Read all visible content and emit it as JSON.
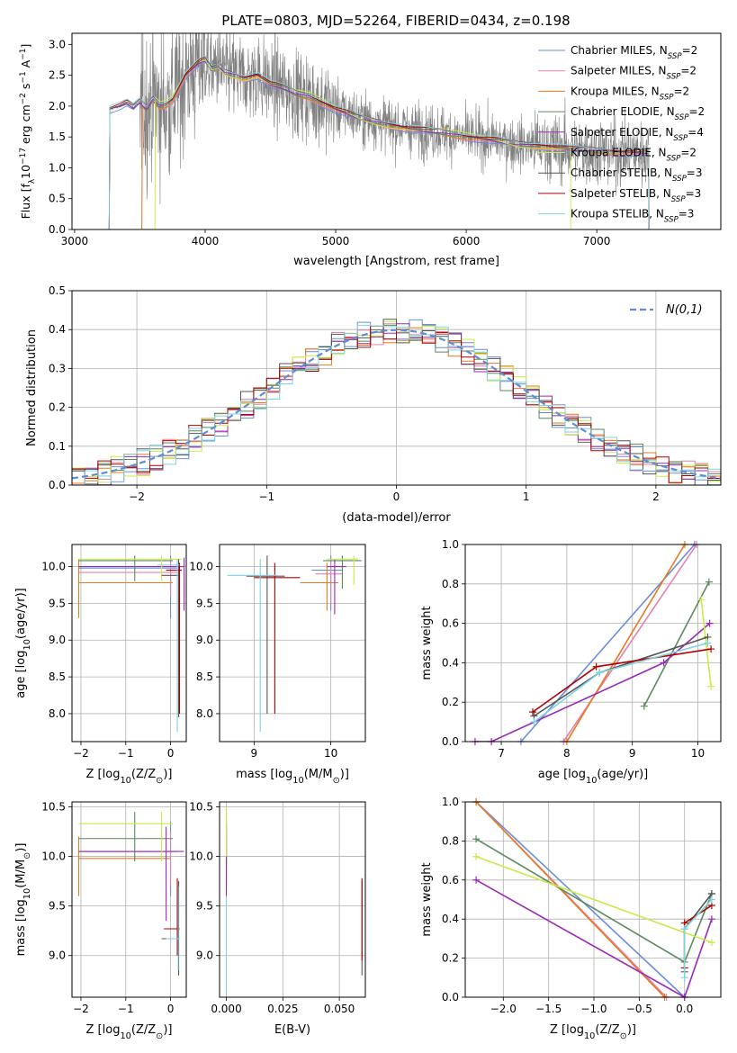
{
  "figure": {
    "title": "PLATE=0803, MJD=52264, FIBERID=0434, z=0.198"
  },
  "models": [
    {
      "name": "Chabrier MILES, N$_{SSP}$=2",
      "label_main": "Chabrier MILES, N",
      "label_sub": "SSP",
      "label_tail": "=2",
      "color": "#6a8ed8"
    },
    {
      "name": "Salpeter MILES, N$_{SSP}$=2",
      "label_main": "Salpeter MILES, N",
      "label_sub": "SSP",
      "label_tail": "=2",
      "color": "#e681b0"
    },
    {
      "name": "Kroupa MILES, N$_{SSP}$=2",
      "label_main": "Kroupa MILES, N",
      "label_sub": "SSP",
      "label_tail": "=2",
      "color": "#e57a1e"
    },
    {
      "name": "Chabrier ELODIE, N$_{SSP}$=2",
      "label_main": "Chabrier ELODIE, N",
      "label_sub": "SSP",
      "label_tail": "=2",
      "color": "#5a8a5e"
    },
    {
      "name": "Salpeter ELODIE, N$_{SSP}$=4",
      "label_main": "Salpeter ELODIE, N",
      "label_sub": "SSP",
      "label_tail": "=4",
      "color": "#9b2ab5"
    },
    {
      "name": "Kroupa ELODIE, N$_{SSP}$=2",
      "label_main": "Kroupa ELODIE, N",
      "label_sub": "SSP",
      "label_tail": "=2",
      "color": "#c9ea4a"
    },
    {
      "name": "Chabrier STELIB, N$_{SSP}$=3",
      "label_main": "Chabrier STELIB, N",
      "label_sub": "SSP",
      "label_tail": "=3",
      "color": "#555555"
    },
    {
      "name": "Salpeter STELIB, N$_{SSP}$=3",
      "label_main": "Salpeter STELIB, N",
      "label_sub": "SSP",
      "label_tail": "=3",
      "color": "#b00000"
    },
    {
      "name": "Kroupa STELIB, N$_{SSP}$=3",
      "label_main": "Kroupa STELIB, N",
      "label_sub": "SSP",
      "label_tail": "=3",
      "color": "#7fd3de"
    }
  ],
  "chart_data": [
    {
      "id": "spectrum",
      "type": "line",
      "xlabel": "wavelength [Angstrom, rest frame]",
      "ylabel": "Flux [f$_\\lambda$10$^{-17}$ erg cm$^{-2}$ s$^{-1}$ A$^{-1}$]",
      "ylabel_parts": {
        "a": "Flux [f",
        "b": "λ",
        "c": "10",
        "d": "−17",
        "e": " erg cm",
        "f": "−2",
        "g": " s",
        "h": "−1",
        "i": " A",
        "j": "−1",
        "k": "]"
      },
      "xlim": [
        2980,
        7950
      ],
      "ylim": [
        0,
        3.18
      ],
      "xticks": [
        3000,
        4000,
        5000,
        6000,
        7000
      ],
      "yticks": [
        0.0,
        0.5,
        1.0,
        1.5,
        2.0,
        2.5,
        3.0
      ],
      "data_color": "#808080",
      "model_continuum": {
        "x": [
          3270,
          3300,
          3350,
          3400,
          3450,
          3500,
          3550,
          3600,
          3650,
          3700,
          3750,
          3800,
          3850,
          3900,
          3950,
          4000,
          4050,
          4100,
          4150,
          4200,
          4300,
          4400,
          4500,
          4600,
          4700,
          4800,
          4900,
          5000,
          5200,
          5400,
          5600,
          5800,
          6000,
          6200,
          6400,
          6600,
          6800,
          7000,
          7200,
          7400
        ],
        "y": [
          1.95,
          1.97,
          2.0,
          2.05,
          1.98,
          2.08,
          1.95,
          2.12,
          2.0,
          2.02,
          2.1,
          2.3,
          2.5,
          2.6,
          2.7,
          2.75,
          2.6,
          2.65,
          2.55,
          2.52,
          2.45,
          2.5,
          2.35,
          2.3,
          2.2,
          2.15,
          2.05,
          1.95,
          1.8,
          1.7,
          1.62,
          1.58,
          1.5,
          1.45,
          1.38,
          1.35,
          1.3,
          1.28,
          1.25,
          1.25
        ]
      },
      "legend": "top-right"
    },
    {
      "id": "residuals",
      "type": "histogram",
      "xlabel": "(data-model)/error",
      "ylabel": "Normed distribution",
      "xlim": [
        -2.5,
        2.5
      ],
      "ylim": [
        0,
        0.5
      ],
      "xticks": [
        -2,
        -1,
        0,
        1,
        2
      ],
      "yticks": [
        0.0,
        0.1,
        0.2,
        0.3,
        0.4,
        0.5
      ],
      "bin_width": 0.1,
      "reference_label": "N(0,1)",
      "reference_color": "#5f8dd3",
      "grid": true,
      "legend": "top-right"
    },
    {
      "id": "age_vs_Z",
      "type": "errorbar",
      "xlabel": "Z [log$_{10}$(Z/Z$_\\odot$)]",
      "ylabel": "age  [log$_{10}$(age/yr)]",
      "xlim": [
        -2.2,
        0.35
      ],
      "ylim": [
        7.62,
        10.3
      ],
      "xticks": [
        -2,
        -1,
        0
      ],
      "yticks": [
        8.0,
        8.5,
        9.0,
        9.5,
        10.0
      ],
      "grid": true,
      "bars": [
        {
          "m": 0,
          "x": 0.0,
          "x0": -2.05,
          "x1": 0.15,
          "y": 9.98,
          "y0": 9.3,
          "y1": 10.15
        },
        {
          "m": 1,
          "x": 0.0,
          "x0": -2.05,
          "x1": 0.15,
          "y": 9.92,
          "y0": 9.6,
          "y1": 10.1
        },
        {
          "m": 2,
          "x": -2.05,
          "x0": -2.05,
          "x1": 0.05,
          "y": 9.78,
          "y0": 9.3,
          "y1": 10.1
        },
        {
          "m": 3,
          "x": -0.8,
          "x0": -2.05,
          "x1": 0.05,
          "y": 10.08,
          "y0": 9.8,
          "y1": 10.15
        },
        {
          "m": 4,
          "x": 0.3,
          "x0": -2.05,
          "x1": 0.3,
          "y": 10.0,
          "y0": 9.4,
          "y1": 10.12
        },
        {
          "m": 5,
          "x": -0.2,
          "x0": -2.05,
          "x1": 0.25,
          "y": 10.1,
          "y0": 9.8,
          "y1": 10.15
        },
        {
          "m": 6,
          "x": 0.18,
          "x0": -0.2,
          "x1": 0.2,
          "y": 9.88,
          "y0": 7.95,
          "y1": 10.1
        },
        {
          "m": 7,
          "x": 0.2,
          "x0": -0.1,
          "x1": 0.25,
          "y": 9.95,
          "y0": 8.0,
          "y1": 10.05
        },
        {
          "m": 8,
          "x": 0.15,
          "x0": -0.3,
          "x1": 0.2,
          "y": 10.02,
          "y0": 7.75,
          "y1": 10.1
        }
      ]
    },
    {
      "id": "age_vs_mass",
      "type": "errorbar",
      "xlabel": "mass [log$_{10}$(M/M$_\\odot$)]",
      "ylabel": "",
      "xlim": [
        8.55,
        10.45
      ],
      "ylim": [
        7.62,
        10.3
      ],
      "xticks": [
        9,
        10
      ],
      "yticks": [
        8.0,
        8.5,
        9.0,
        9.5,
        10.0
      ],
      "grid": true,
      "bars": [
        {
          "m": 0,
          "x": 10.0,
          "x0": 9.75,
          "x1": 10.15,
          "y": 9.95,
          "y0": 9.4,
          "y1": 10.15
        },
        {
          "m": 1,
          "x": 10.0,
          "x0": 9.8,
          "x1": 10.15,
          "y": 9.9,
          "y0": 9.5,
          "y1": 10.1
        },
        {
          "m": 2,
          "x": 9.95,
          "x0": 9.6,
          "x1": 10.1,
          "y": 9.78,
          "y0": 9.4,
          "y1": 10.05
        },
        {
          "m": 3,
          "x": 10.15,
          "x0": 9.9,
          "x1": 10.4,
          "y": 10.08,
          "y0": 9.7,
          "y1": 10.15
        },
        {
          "m": 4,
          "x": 10.05,
          "x0": 9.95,
          "x1": 10.2,
          "y": 10.0,
          "y0": 9.35,
          "y1": 10.1
        },
        {
          "m": 5,
          "x": 10.3,
          "x0": 9.95,
          "x1": 10.35,
          "y": 10.1,
          "y0": 9.75,
          "y1": 10.15
        },
        {
          "m": 6,
          "x": 9.17,
          "x0": 8.9,
          "x1": 9.4,
          "y": 9.87,
          "y0": 8.0,
          "y1": 10.15
        },
        {
          "m": 7,
          "x": 9.27,
          "x0": 9.0,
          "x1": 9.6,
          "y": 9.85,
          "y0": 8.0,
          "y1": 10.05
        },
        {
          "m": 8,
          "x": 9.08,
          "x0": 8.65,
          "x1": 9.3,
          "y": 9.88,
          "y0": 7.75,
          "y1": 10.1
        }
      ]
    },
    {
      "id": "massweight_vs_age",
      "type": "line",
      "xlabel": "age  [log$_{10}$(age/yr)]",
      "ylabel": "mass weight",
      "xlim": [
        6.45,
        10.35
      ],
      "ylim": [
        0,
        1.0
      ],
      "xticks": [
        7,
        8,
        9,
        10
      ],
      "yticks": [
        0.0,
        0.2,
        0.4,
        0.6,
        0.8,
        1.0
      ],
      "grid": true,
      "series": [
        {
          "m": 0,
          "x": [
            7.3,
            9.95
          ],
          "y": [
            0.0,
            1.0
          ]
        },
        {
          "m": 1,
          "x": [
            7.95,
            9.98
          ],
          "y": [
            0.0,
            1.0
          ]
        },
        {
          "m": 2,
          "x": [
            8.0,
            9.8
          ],
          "y": [
            0.0,
            1.0
          ]
        },
        {
          "m": 3,
          "x": [
            9.18,
            10.17
          ],
          "y": [
            0.18,
            0.81
          ]
        },
        {
          "m": 4,
          "x": [
            6.6,
            6.85,
            9.48,
            10.18
          ],
          "y": [
            0.0,
            0.0,
            0.4,
            0.6
          ]
        },
        {
          "m": 5,
          "x": [
            10.05,
            10.2
          ],
          "y": [
            0.72,
            0.28
          ]
        },
        {
          "m": 6,
          "x": [
            7.5,
            8.5,
            10.15
          ],
          "y": [
            0.13,
            0.35,
            0.53
          ]
        },
        {
          "m": 7,
          "x": [
            7.48,
            8.45,
            10.2
          ],
          "y": [
            0.15,
            0.38,
            0.47
          ]
        },
        {
          "m": 8,
          "x": [
            7.5,
            8.5,
            10.15
          ],
          "y": [
            0.1,
            0.35,
            0.5
          ]
        }
      ]
    },
    {
      "id": "mass_vs_Z",
      "type": "errorbar",
      "xlabel": "Z [log$_{10}$(Z/Z$_\\odot$)]",
      "ylabel": "mass [log$_{10}$(M/M$_\\odot$)]",
      "xlim": [
        -2.2,
        0.35
      ],
      "ylim": [
        8.58,
        10.55
      ],
      "xticks": [
        -2,
        -1,
        0
      ],
      "yticks": [
        9.0,
        9.5,
        10.0,
        10.5
      ],
      "grid": true,
      "bars": [
        {
          "m": 0,
          "x": 0.0,
          "x0": -2.05,
          "x1": 0.15,
          "y": 10.05,
          "y0": 9.6,
          "y1": 10.35
        },
        {
          "m": 1,
          "x": 0.0,
          "x0": -2.05,
          "x1": 0.15,
          "y": 10.05,
          "y0": 9.7,
          "y1": 10.25
        },
        {
          "m": 2,
          "x": -2.05,
          "x0": -2.05,
          "x1": 0.0,
          "y": 9.98,
          "y0": 9.6,
          "y1": 10.2
        },
        {
          "m": 3,
          "x": -0.8,
          "x0": -2.05,
          "x1": 0.05,
          "y": 10.18,
          "y0": 9.95,
          "y1": 10.45
        },
        {
          "m": 4,
          "x": -0.1,
          "x0": -2.05,
          "x1": 0.3,
          "y": 10.05,
          "y0": 9.35,
          "y1": 10.3
        },
        {
          "m": 5,
          "x": -0.2,
          "x0": -2.05,
          "x1": 0.05,
          "y": 10.33,
          "y0": 9.95,
          "y1": 10.45
        },
        {
          "m": 6,
          "x": 0.18,
          "x0": -0.2,
          "x1": 0.2,
          "y": 9.17,
          "y0": 8.8,
          "y1": 9.75
        },
        {
          "m": 7,
          "x": 0.15,
          "x0": -0.15,
          "x1": 0.2,
          "y": 9.27,
          "y0": 9.0,
          "y1": 9.78
        },
        {
          "m": 8,
          "x": 0.17,
          "x0": -0.1,
          "x1": 0.2,
          "y": 9.17,
          "y0": 8.85,
          "y1": 9.7
        }
      ]
    },
    {
      "id": "mass_vs_EBV",
      "type": "errorbar",
      "xlabel": "E(B-V)",
      "ylabel": "",
      "xlim": [
        -0.003,
        0.0615
      ],
      "ylim": [
        8.58,
        10.55
      ],
      "xticks": [
        0.0,
        0.025,
        0.05
      ],
      "xticklabels": [
        "0.000",
        "0.025",
        "0.050"
      ],
      "yticks": [
        9.0,
        9.5,
        10.0,
        10.5
      ],
      "grid": true,
      "bars": [
        {
          "m": 0,
          "x": 0.0,
          "x0": 0.0,
          "x1": 0.0,
          "y": 10.05,
          "y0": 9.7,
          "y1": 10.35
        },
        {
          "m": 1,
          "x": 0.0,
          "x0": 0.0,
          "x1": 0.0,
          "y": 10.05,
          "y0": 9.75,
          "y1": 10.3
        },
        {
          "m": 2,
          "x": 0.0,
          "x0": 0.0,
          "x1": 0.0,
          "y": 9.98,
          "y0": 9.7,
          "y1": 10.25
        },
        {
          "m": 3,
          "x": 0.0,
          "x0": 0.0,
          "x1": 0.0,
          "y": 10.18,
          "y0": 9.95,
          "y1": 10.45
        },
        {
          "m": 4,
          "x": 0.0,
          "x0": 0.0,
          "x1": 0.0,
          "y": 10.05,
          "y0": 9.6,
          "y1": 10.3
        },
        {
          "m": 5,
          "x": 0.0,
          "x0": 0.0,
          "x1": 0.0,
          "y": 10.33,
          "y0": 10.0,
          "y1": 10.5
        },
        {
          "m": 6,
          "x": 0.06,
          "x0": 0.06,
          "x1": 0.06,
          "y": 9.17,
          "y0": 8.8,
          "y1": 9.75
        },
        {
          "m": 7,
          "x": 0.06,
          "x0": 0.06,
          "x1": 0.06,
          "y": 9.27,
          "y0": 8.95,
          "y1": 9.78
        },
        {
          "m": 8,
          "x": 0.0,
          "x0": 0.0,
          "x1": 0.0,
          "y": 9.17,
          "y0": 8.6,
          "y1": 9.6
        }
      ]
    },
    {
      "id": "massweight_vs_Z",
      "type": "line",
      "xlabel": "Z [log$_{10}$(Z/Z$_\\odot$)]",
      "ylabel": "mass weight",
      "xlim": [
        -2.42,
        0.4
      ],
      "ylim": [
        0,
        1.0
      ],
      "xticks": [
        -2.0,
        -1.5,
        -1.0,
        -0.5,
        0.0
      ],
      "xticklabels": [
        "−2.0",
        "−1.5",
        "−1.0",
        "−0.5",
        "0.0"
      ],
      "yticks": [
        0.0,
        0.2,
        0.4,
        0.6,
        0.8,
        1.0
      ],
      "grid": true,
      "series": [
        {
          "m": 0,
          "x": [
            -2.3,
            0.0
          ],
          "y": [
            1.0,
            0.0
          ]
        },
        {
          "m": 1,
          "x": [
            -2.3,
            -0.2
          ],
          "y": [
            1.0,
            0.0
          ]
        },
        {
          "m": 2,
          "x": [
            -2.3,
            -0.22
          ],
          "y": [
            1.0,
            0.0
          ]
        },
        {
          "m": 3,
          "x": [
            -2.3,
            0.0,
            0.3
          ],
          "y": [
            0.81,
            0.18,
            0.53
          ]
        },
        {
          "m": 4,
          "x": [
            -2.3,
            0.0,
            0.3
          ],
          "y": [
            0.6,
            0.0,
            0.4
          ]
        },
        {
          "m": 5,
          "x": [
            -2.3,
            0.3
          ],
          "y": [
            0.72,
            0.28
          ]
        },
        {
          "m": 6,
          "x": [
            0.0,
            0.0,
            0.3
          ],
          "y": [
            0.13,
            0.35,
            0.53
          ]
        },
        {
          "m": 7,
          "x": [
            0.0,
            0.0,
            0.3
          ],
          "y": [
            0.15,
            0.38,
            0.47
          ]
        },
        {
          "m": 8,
          "x": [
            0.0,
            0.0,
            0.3
          ],
          "y": [
            0.1,
            0.35,
            0.5
          ]
        }
      ]
    }
  ]
}
